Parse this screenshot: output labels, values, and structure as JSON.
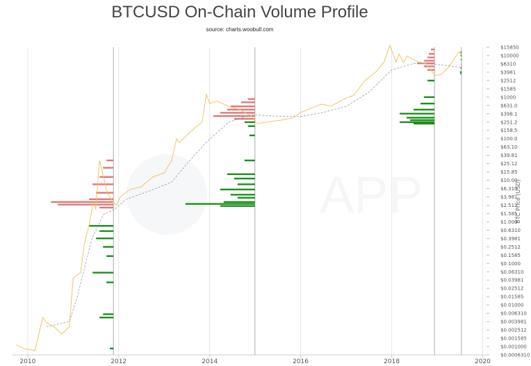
{
  "chart_data": {
    "type": "line",
    "title": "BTCUSD On-Chain Volume Profile",
    "subtitle": "source: charts.woobull.com",
    "ylabel": "BTC Price (USD)",
    "xlabel": "",
    "y_scale": "log",
    "ylim": [
      0.000631,
      15850
    ],
    "xlim": [
      "2009-09-01",
      "2020-02-01"
    ],
    "x_ticks": [
      "2010",
      "2012",
      "2014",
      "2016",
      "2018",
      "2020"
    ],
    "y_ticks": [
      {
        "value": 15850,
        "label": "$15850"
      },
      {
        "value": 10000,
        "label": "$10000"
      },
      {
        "value": 6310,
        "label": "$6310"
      },
      {
        "value": 3981,
        "label": "$3981"
      },
      {
        "value": 2512,
        "label": "$2512"
      },
      {
        "value": 1585,
        "label": "$1585"
      },
      {
        "value": 1000,
        "label": "$1000"
      },
      {
        "value": 631,
        "label": "$631.0"
      },
      {
        "value": 398.1,
        "label": "$398.1"
      },
      {
        "value": 251.2,
        "label": "$251.2"
      },
      {
        "value": 158.5,
        "label": "$158.5"
      },
      {
        "value": 100,
        "label": "$100.0"
      },
      {
        "value": 63.1,
        "label": "$63.10"
      },
      {
        "value": 39.81,
        "label": "$39.81"
      },
      {
        "value": 25.12,
        "label": "$25.12"
      },
      {
        "value": 15.85,
        "label": "$15.85"
      },
      {
        "value": 10,
        "label": "$10.00"
      },
      {
        "value": 6.31,
        "label": "$6.310"
      },
      {
        "value": 3.981,
        "label": "$3.981"
      },
      {
        "value": 2.512,
        "label": "$2.512"
      },
      {
        "value": 1.585,
        "label": "$1.585"
      },
      {
        "value": 1,
        "label": "$1.000"
      },
      {
        "value": 0.631,
        "label": "$0.6310"
      },
      {
        "value": 0.3981,
        "label": "$0.3981"
      },
      {
        "value": 0.2512,
        "label": "$0.2512"
      },
      {
        "value": 0.1585,
        "label": "$0.1585"
      },
      {
        "value": 0.1,
        "label": "$0.1000"
      },
      {
        "value": 0.0631,
        "label": "$0.06310"
      },
      {
        "value": 0.03981,
        "label": "$0.03981"
      },
      {
        "value": 0.02512,
        "label": "$0.02512"
      },
      {
        "value": 0.01585,
        "label": "$0.01585"
      },
      {
        "value": 0.01,
        "label": "$0.01000"
      },
      {
        "value": 0.00631,
        "label": "$0.006310"
      },
      {
        "value": 0.003981,
        "label": "$0.003981"
      },
      {
        "value": 0.002512,
        "label": "$0.002512"
      },
      {
        "value": 0.001585,
        "label": "$0.001585"
      },
      {
        "value": 0.001,
        "label": "$0.001000"
      },
      {
        "value": 0.000631,
        "label": "$0.0006310"
      }
    ],
    "series": [
      {
        "style": "solid",
        "color": "#f3c266",
        "points": [
          [
            "2009-10-01",
            0.0011
          ],
          [
            "2009-12-01",
            0.0009
          ],
          [
            "2010-03-01",
            0.0008
          ],
          [
            "2010-05-01",
            0.005
          ],
          [
            "2010-06-15",
            0.0035
          ],
          [
            "2010-08-01",
            0.003
          ],
          [
            "2010-10-01",
            0.002
          ],
          [
            "2010-12-01",
            0.003
          ],
          [
            "2011-01-01",
            0.045
          ],
          [
            "2011-03-01",
            0.06
          ],
          [
            "2011-04-01",
            0.3
          ],
          [
            "2011-05-15",
            1.0
          ],
          [
            "2011-06-10",
            3.0
          ],
          [
            "2011-07-01",
            2.0
          ],
          [
            "2011-08-01",
            30.0
          ],
          [
            "2011-09-01",
            12.0
          ],
          [
            "2011-10-01",
            5.0
          ],
          [
            "2011-11-15",
            3.0
          ],
          [
            "2011-12-15",
            2.5
          ],
          [
            "2012-01-15",
            4.0
          ],
          [
            "2012-04-01",
            6.0
          ],
          [
            "2012-07-01",
            7.0
          ],
          [
            "2012-10-01",
            12.0
          ],
          [
            "2013-01-01",
            15.0
          ],
          [
            "2013-03-01",
            30.0
          ],
          [
            "2013-04-10",
            100.0
          ],
          [
            "2013-05-01",
            80.0
          ],
          [
            "2013-07-01",
            120.0
          ],
          [
            "2013-09-01",
            180.0
          ],
          [
            "2013-11-01",
            250.0
          ],
          [
            "2013-12-05",
            1150.0
          ],
          [
            "2014-01-01",
            700.0
          ],
          [
            "2014-03-01",
            800.0
          ],
          [
            "2014-06-01",
            600.0
          ],
          [
            "2014-09-01",
            500.0
          ],
          [
            "2014-12-01",
            350.0
          ],
          [
            "2015-01-15",
            230.0
          ],
          [
            "2015-04-01",
            250.0
          ],
          [
            "2015-08-01",
            280.0
          ],
          [
            "2015-11-01",
            320.0
          ],
          [
            "2016-01-01",
            430.0
          ],
          [
            "2016-06-15",
            680.0
          ],
          [
            "2016-09-01",
            610.0
          ],
          [
            "2017-01-01",
            960.0
          ],
          [
            "2017-03-01",
            1100.0
          ],
          [
            "2017-06-01",
            2500.0
          ],
          [
            "2017-09-01",
            4200.0
          ],
          [
            "2017-11-01",
            7000.0
          ],
          [
            "2017-12-17",
            17500.0
          ],
          [
            "2018-02-06",
            7000.0
          ],
          [
            "2018-03-01",
            11000.0
          ],
          [
            "2018-04-06",
            6800.0
          ],
          [
            "2018-05-05",
            9700.0
          ],
          [
            "2018-08-01",
            7000.0
          ],
          [
            "2018-10-01",
            6500.0
          ],
          [
            "2018-12-15",
            3300.0
          ],
          [
            "2019-02-01",
            3500.0
          ],
          [
            "2019-04-01",
            5200.0
          ],
          [
            "2019-06-26",
            12500.0
          ],
          [
            "2019-07-15",
            10500.0
          ]
        ]
      },
      {
        "style": "dashed",
        "color": "#999999",
        "points": [
          [
            "2010-06-01",
            0.003
          ],
          [
            "2010-12-01",
            0.004
          ],
          [
            "2011-02-01",
            0.015
          ],
          [
            "2011-06-01",
            0.4
          ],
          [
            "2011-09-01",
            1.5
          ],
          [
            "2011-12-01",
            2.0
          ],
          [
            "2012-03-01",
            3.5
          ],
          [
            "2012-09-01",
            5.5
          ],
          [
            "2013-03-01",
            9.0
          ],
          [
            "2013-07-01",
            25.0
          ],
          [
            "2013-12-01",
            80.0
          ],
          [
            "2014-06-01",
            250.0
          ],
          [
            "2014-12-01",
            380.0
          ],
          [
            "2015-06-01",
            350.0
          ],
          [
            "2016-01-01",
            340.0
          ],
          [
            "2016-07-01",
            430.0
          ],
          [
            "2017-01-01",
            600.0
          ],
          [
            "2017-07-01",
            1300.0
          ],
          [
            "2018-01-01",
            4500.0
          ],
          [
            "2018-07-01",
            6500.0
          ],
          [
            "2019-01-01",
            6100.0
          ],
          [
            "2019-07-15",
            5200.0
          ]
        ]
      }
    ],
    "vertical_lines": [
      "2011-11-20",
      "2014-12-30",
      "2018-12-10",
      "2019-07-15"
    ],
    "volume_profiles": [
      {
        "date": "2011-11-20",
        "bars": [
          [
            30.0,
            0.1,
            "#e07878"
          ],
          [
            20.0,
            0.15,
            "#e07878"
          ],
          [
            12.0,
            0.2,
            "#e07878"
          ],
          [
            8.0,
            0.3,
            "#e07878"
          ],
          [
            5.0,
            0.25,
            "#e07878"
          ],
          [
            3.5,
            0.35,
            "#e07878"
          ],
          [
            3.0,
            0.9,
            "#e07878"
          ],
          [
            2.6,
            0.8,
            "#e07878"
          ],
          [
            2.2,
            0.2,
            "#e07878"
          ],
          [
            0.8,
            0.35,
            "#1b8f1b"
          ],
          [
            0.6,
            0.2,
            "#1b8f1b"
          ],
          [
            0.4,
            0.25,
            "#1b8f1b"
          ],
          [
            0.25,
            0.15,
            "#1b8f1b"
          ],
          [
            0.15,
            0.1,
            "#1b8f1b"
          ],
          [
            0.06,
            0.3,
            "#1b8f1b"
          ],
          [
            0.035,
            0.1,
            "#1b8f1b"
          ],
          [
            0.006,
            0.15,
            "#1b8f1b"
          ],
          [
            0.005,
            0.2,
            "#1b8f1b"
          ],
          [
            0.0009,
            0.05,
            "#1b8f1b"
          ]
        ]
      },
      {
        "date": "2014-12-30",
        "bars": [
          [
            900.0,
            0.1,
            "#e07878"
          ],
          [
            750.0,
            0.2,
            "#e07878"
          ],
          [
            600.0,
            0.35,
            "#e07878"
          ],
          [
            500.0,
            0.4,
            "#e07878"
          ],
          [
            420.0,
            0.5,
            "#e07878"
          ],
          [
            350.0,
            0.6,
            "#e07878"
          ],
          [
            300.0,
            0.3,
            "#e07878"
          ],
          [
            250.0,
            0.15,
            "#1b8f1b"
          ],
          [
            200.0,
            0.1,
            "#1b8f1b"
          ],
          [
            120.0,
            0.08,
            "#1b8f1b"
          ],
          [
            30.0,
            0.15,
            "#1b8f1b"
          ],
          [
            14.0,
            0.4,
            "#1b8f1b"
          ],
          [
            11.0,
            0.3,
            "#1b8f1b"
          ],
          [
            8.0,
            0.25,
            "#1b8f1b"
          ],
          [
            6.0,
            0.5,
            "#1b8f1b"
          ],
          [
            4.5,
            0.35,
            "#1b8f1b"
          ],
          [
            3.8,
            0.25,
            "#1b8f1b"
          ],
          [
            3.0,
            0.45,
            "#1b8f1b"
          ],
          [
            2.7,
            1.0,
            "#1b8f1b"
          ],
          [
            2.4,
            0.5,
            "#1b8f1b"
          ]
        ]
      },
      {
        "date": "2018-12-10",
        "bars": [
          [
            14000.0,
            0.05,
            "#e07878"
          ],
          [
            11000.0,
            0.08,
            "#e07878"
          ],
          [
            9000.0,
            0.1,
            "#e07878"
          ],
          [
            7500.0,
            0.15,
            "#e07878"
          ],
          [
            6500.0,
            0.25,
            "#e07878"
          ],
          [
            5500.0,
            0.15,
            "#e07878"
          ],
          [
            4500.0,
            0.1,
            "#e07878"
          ],
          [
            2500.0,
            0.1,
            "#1b8f1b"
          ],
          [
            1000.0,
            0.15,
            "#1b8f1b"
          ],
          [
            700.0,
            0.2,
            "#1b8f1b"
          ],
          [
            500.0,
            0.3,
            "#1b8f1b"
          ],
          [
            400.0,
            0.5,
            "#1b8f1b"
          ],
          [
            320.0,
            0.4,
            "#1b8f1b"
          ],
          [
            280.0,
            0.35,
            "#1b8f1b"
          ],
          [
            250.0,
            0.5,
            "#1b8f1b"
          ],
          [
            230.0,
            0.3,
            "#1b8f1b"
          ]
        ]
      },
      {
        "date": "2019-07-15",
        "bars": [
          [
            12000.0,
            0.05,
            "#1b8f1b"
          ],
          [
            10000.0,
            0.05,
            "#1b8f1b"
          ],
          [
            8000.0,
            0.04,
            "#1b8f1b"
          ],
          [
            6000.0,
            0.03,
            "#e07878"
          ],
          [
            5000.0,
            0.05,
            "#1b8f1b"
          ],
          [
            4000.0,
            0.08,
            "#1b8f1b"
          ],
          [
            3700.0,
            0.06,
            "#1b8f1b"
          ]
        ]
      }
    ],
    "watermark_text": "APP"
  }
}
